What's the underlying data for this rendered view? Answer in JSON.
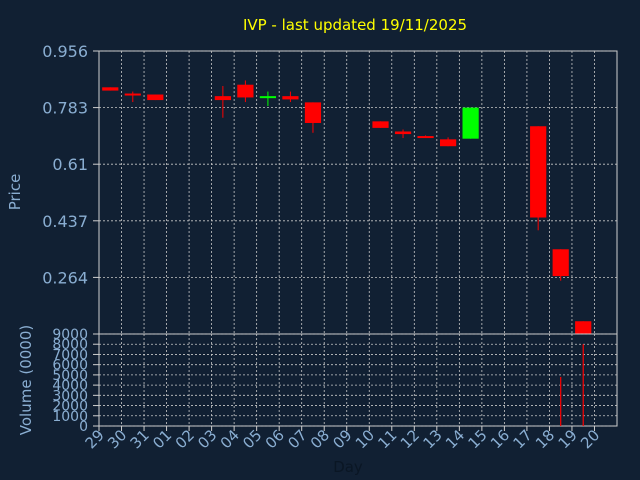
{
  "chart_data": {
    "type": "candlestick",
    "title": "IVP - last updated 19/11/2025",
    "ylabel": "Price",
    "xlabel": "Day",
    "volume_label": "Volume (0000)",
    "grid": true,
    "price_ticks": [
      "0.956",
      "0.783",
      "0.61",
      "0.437",
      "0.264"
    ],
    "price_tick_values": [
      0.956,
      0.783,
      0.61,
      0.437,
      0.264
    ],
    "ylim": [
      0.091,
      0.956
    ],
    "volume_ticks": [
      "9000",
      "8000",
      "7000",
      "6000",
      "5000",
      "4000",
      "3000",
      "2000",
      "1000",
      "0"
    ],
    "volume_tick_values": [
      9000,
      8000,
      7000,
      6000,
      5000,
      4000,
      3000,
      2000,
      1000,
      0
    ],
    "volume_ylim": [
      0,
      9000
    ],
    "categories": [
      "29",
      "30",
      "31",
      "01",
      "02",
      "03",
      "04",
      "05",
      "06",
      "07",
      "08",
      "09",
      "10",
      "11",
      "12",
      "13",
      "14",
      "15",
      "16",
      "17",
      "18",
      "19",
      "20"
    ],
    "candles": [
      {
        "day": "29",
        "open": 0.845,
        "close": 0.835,
        "high": 0.845,
        "low": 0.835
      },
      {
        "day": "30",
        "open": 0.826,
        "close": 0.822,
        "high": 0.832,
        "low": 0.8
      },
      {
        "day": "31",
        "open": 0.823,
        "close": 0.806,
        "high": 0.823,
        "low": 0.806
      },
      {
        "day": "03",
        "open": 0.818,
        "close": 0.806,
        "high": 0.849,
        "low": 0.752
      },
      {
        "day": "04",
        "open": 0.853,
        "close": 0.814,
        "high": 0.866,
        "low": 0.8
      },
      {
        "day": "05",
        "open": 0.814,
        "close": 0.818,
        "high": 0.832,
        "low": 0.788
      },
      {
        "day": "06",
        "open": 0.818,
        "close": 0.808,
        "high": 0.832,
        "low": 0.8
      },
      {
        "day": "07",
        "open": 0.799,
        "close": 0.736,
        "high": 0.799,
        "low": 0.706
      },
      {
        "day": "10",
        "open": 0.741,
        "close": 0.721,
        "high": 0.741,
        "low": 0.721
      },
      {
        "day": "11",
        "open": 0.71,
        "close": 0.702,
        "high": 0.716,
        "low": 0.69
      },
      {
        "day": "12",
        "open": 0.696,
        "close": 0.69,
        "high": 0.698,
        "low": 0.69
      },
      {
        "day": "13",
        "open": 0.686,
        "close": 0.665,
        "high": 0.692,
        "low": 0.665
      },
      {
        "day": "14",
        "open": 0.688,
        "close": 0.783,
        "high": 0.783,
        "low": 0.688
      },
      {
        "day": "17",
        "open": 0.726,
        "close": 0.447,
        "high": 0.726,
        "low": 0.408
      },
      {
        "day": "18",
        "open": 0.35,
        "close": 0.268,
        "high": 0.35,
        "low": 0.254
      },
      {
        "day": "19",
        "open": 0.13,
        "close": 0.091,
        "high": 0.13,
        "low": 0.091
      }
    ],
    "volume": [
      {
        "day": "18",
        "value": 4800
      },
      {
        "day": "19",
        "value": 8000
      }
    ],
    "colors": {
      "background": "#112033",
      "axis_text": "#8aaed2",
      "title": "#ffff00",
      "grid": "#c8c8c8",
      "frame": "#d0d0d0",
      "down": "#ff0000",
      "up": "#00ff00"
    }
  }
}
